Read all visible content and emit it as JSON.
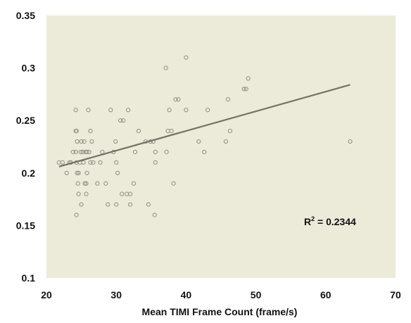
{
  "chart_data": {
    "type": "scatter",
    "title": "",
    "xlabel": "Mean TIMI Frame Count (frame/s)",
    "ylabel": "",
    "xlim": [
      20,
      70
    ],
    "ylim": [
      0.1,
      0.35
    ],
    "x_ticks": [
      "20",
      "30",
      "40",
      "50",
      "60",
      "70"
    ],
    "y_ticks": [
      "0.1",
      "0.15",
      "0.2",
      "0.25",
      "0.3",
      "0.35"
    ],
    "grid": false,
    "legend": "none",
    "colors": {
      "plot_background": "#ecead9",
      "point_stroke": "#8e8e84",
      "trendline": "#707566"
    },
    "annotation": {
      "text_prefix": "R",
      "superscript": "2",
      "text_suffix": " = 0.2344"
    },
    "trendline": {
      "x": [
        21.8,
        63.5
      ],
      "y": [
        0.206,
        0.284
      ]
    },
    "series": [
      {
        "points": [
          [
            21.8,
            0.21
          ],
          [
            22.3,
            0.21
          ],
          [
            22.9,
            0.2
          ],
          [
            23.3,
            0.21
          ],
          [
            23.5,
            0.21
          ],
          [
            23.8,
            0.22
          ],
          [
            24.2,
            0.26
          ],
          [
            24.2,
            0.24
          ],
          [
            24.3,
            0.24
          ],
          [
            24.2,
            0.22
          ],
          [
            24.4,
            0.23
          ],
          [
            24.3,
            0.21
          ],
          [
            24.4,
            0.2
          ],
          [
            24.5,
            0.19
          ],
          [
            24.6,
            0.18
          ],
          [
            24.3,
            0.16
          ],
          [
            24.6,
            0.2
          ],
          [
            24.8,
            0.21
          ],
          [
            24.9,
            0.22
          ],
          [
            25.0,
            0.23
          ],
          [
            25.0,
            0.17
          ],
          [
            25.2,
            0.22
          ],
          [
            25.3,
            0.21
          ],
          [
            25.4,
            0.23
          ],
          [
            25.5,
            0.19
          ],
          [
            25.6,
            0.22
          ],
          [
            25.7,
            0.19
          ],
          [
            25.7,
            0.18
          ],
          [
            25.8,
            0.2
          ],
          [
            25.8,
            0.22
          ],
          [
            26.0,
            0.26
          ],
          [
            26.1,
            0.22
          ],
          [
            26.3,
            0.21
          ],
          [
            26.3,
            0.24
          ],
          [
            26.5,
            0.23
          ],
          [
            26.7,
            0.21
          ],
          [
            27.3,
            0.19
          ],
          [
            27.7,
            0.21
          ],
          [
            28.0,
            0.22
          ],
          [
            28.5,
            0.19
          ],
          [
            28.8,
            0.17
          ],
          [
            29.2,
            0.26
          ],
          [
            29.6,
            0.22
          ],
          [
            29.9,
            0.23
          ],
          [
            30.0,
            0.21
          ],
          [
            30.0,
            0.17
          ],
          [
            30.2,
            0.2
          ],
          [
            30.6,
            0.25
          ],
          [
            30.8,
            0.18
          ],
          [
            31.0,
            0.25
          ],
          [
            31.5,
            0.18
          ],
          [
            31.7,
            0.26
          ],
          [
            32.0,
            0.17
          ],
          [
            32.0,
            0.18
          ],
          [
            32.5,
            0.19
          ],
          [
            32.7,
            0.22
          ],
          [
            33.2,
            0.24
          ],
          [
            34.2,
            0.23
          ],
          [
            34.6,
            0.17
          ],
          [
            34.9,
            0.23
          ],
          [
            35.3,
            0.23
          ],
          [
            35.5,
            0.16
          ],
          [
            35.6,
            0.22
          ],
          [
            35.6,
            0.21
          ],
          [
            37.1,
            0.3
          ],
          [
            37.2,
            0.22
          ],
          [
            37.4,
            0.24
          ],
          [
            37.6,
            0.26
          ],
          [
            37.9,
            0.24
          ],
          [
            38.2,
            0.19
          ],
          [
            38.5,
            0.27
          ],
          [
            38.9,
            0.27
          ],
          [
            40.0,
            0.26
          ],
          [
            40.0,
            0.31
          ],
          [
            41.8,
            0.23
          ],
          [
            42.6,
            0.22
          ],
          [
            43.1,
            0.26
          ],
          [
            45.7,
            0.23
          ],
          [
            46.0,
            0.27
          ],
          [
            46.3,
            0.24
          ],
          [
            48.3,
            0.28
          ],
          [
            48.6,
            0.28
          ],
          [
            48.9,
            0.29
          ],
          [
            63.5,
            0.23
          ]
        ]
      }
    ]
  }
}
